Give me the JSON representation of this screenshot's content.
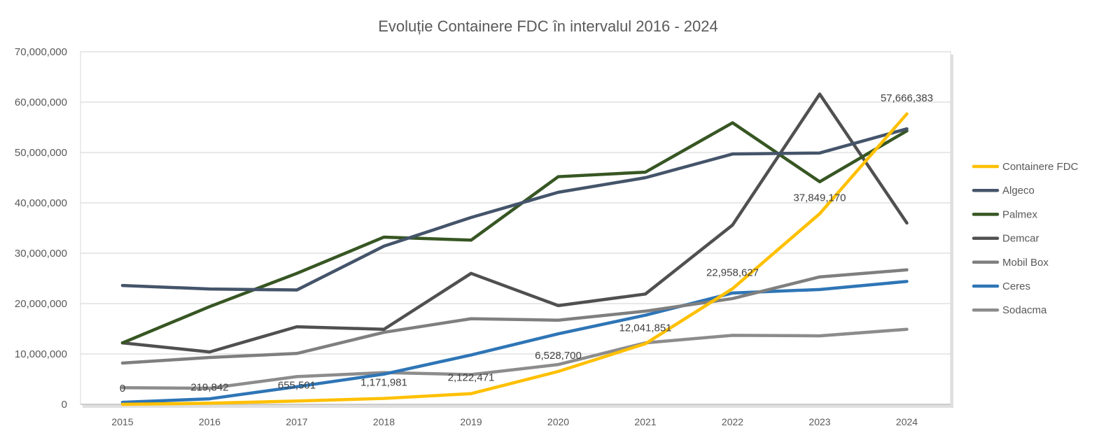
{
  "chart_data": {
    "type": "line",
    "title": "Evoluție Containere FDC în intervalul 2016 - 2024",
    "xlabel": "",
    "ylabel": "",
    "categories": [
      "2015",
      "2016",
      "2017",
      "2018",
      "2019",
      "2020",
      "2021",
      "2022",
      "2023",
      "2024"
    ],
    "ylim": [
      0,
      70000000
    ],
    "yticks": [
      "0",
      "10,000,000",
      "20,000,000",
      "30,000,000",
      "40,000,000",
      "50,000,000",
      "60,000,000",
      "70,000,000"
    ],
    "grid": true,
    "legend_position": "right",
    "series": [
      {
        "name": "Containere FDC",
        "color": "#FFC000",
        "values": [
          0,
          219842,
          655501,
          1171981,
          2122471,
          6528700,
          12041851,
          22958627,
          37849170,
          57666383
        ],
        "data_labels": [
          "0",
          "219,842",
          "655,501",
          "1,171,981",
          "2,122,471",
          "6,528,700",
          "12,041,851",
          "22,958,627",
          "37,849,170",
          "57,666,383"
        ]
      },
      {
        "name": "Algeco",
        "color": "#44546A",
        "values": [
          23600000,
          22900000,
          22700000,
          31400000,
          37100000,
          42100000,
          45000000,
          49700000,
          49900000,
          54700000
        ]
      },
      {
        "name": "Palmex",
        "color": "#375623",
        "values": [
          12200000,
          19400000,
          26000000,
          33200000,
          32600000,
          45200000,
          46100000,
          55900000,
          44200000,
          54300000
        ]
      },
      {
        "name": "Demcar",
        "color": "#505050",
        "values": [
          12200000,
          10400000,
          15400000,
          14900000,
          26000000,
          19600000,
          21900000,
          35600000,
          61600000,
          36000000
        ]
      },
      {
        "name": "Mobil Box",
        "color": "#7F7F7F",
        "values": [
          8200000,
          9300000,
          10100000,
          14300000,
          17000000,
          16700000,
          18500000,
          21000000,
          25300000,
          26700000
        ]
      },
      {
        "name": "Ceres",
        "color": "#2E75B6",
        "values": [
          400000,
          1100000,
          3500000,
          6000000,
          9800000,
          14000000,
          17700000,
          22100000,
          22800000,
          24400000
        ]
      },
      {
        "name": "Sodacma",
        "color": "#8C8C8C",
        "values": [
          3300000,
          3200000,
          5500000,
          6300000,
          5900000,
          7900000,
          12200000,
          13700000,
          13600000,
          14900000
        ]
      }
    ]
  }
}
